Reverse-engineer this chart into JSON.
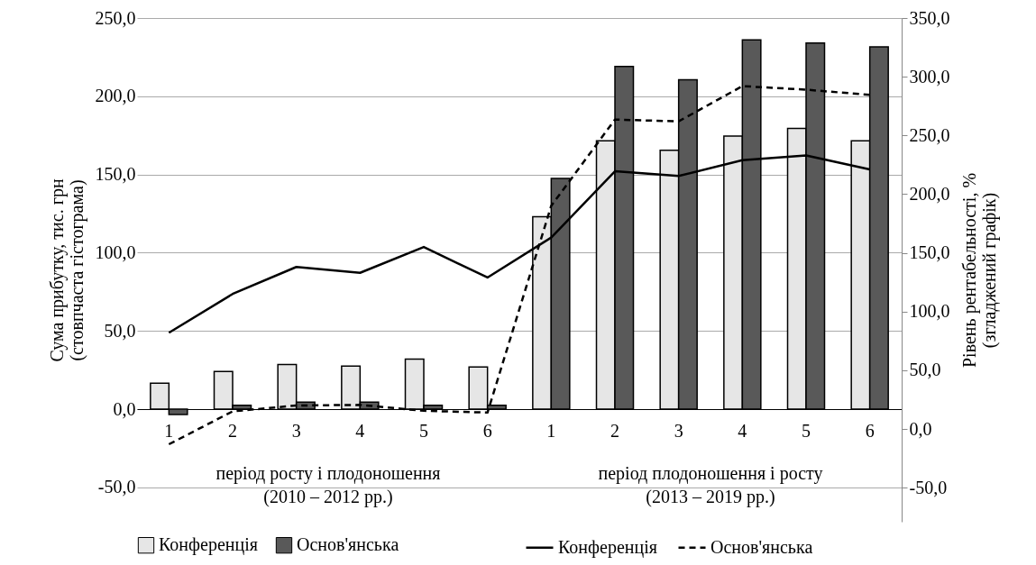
{
  "chart_data": {
    "type": "bar",
    "ylabel": "Сума прибутку, тис. грн\n(стовпчаста гістограма)",
    "y2label": "Рівень рентабельності, %\n(згладжений графік)",
    "categories": [
      "1",
      "2",
      "3",
      "4",
      "5",
      "6",
      "1",
      "2",
      "3",
      "4",
      "5",
      "6"
    ],
    "ylim": [
      -72,
      250
    ],
    "yticks": [
      {
        "value": -50,
        "label": "-50,0"
      },
      {
        "value": 0,
        "label": "0,0"
      },
      {
        "value": 50,
        "label": "50,0"
      },
      {
        "value": 100,
        "label": "100,0"
      },
      {
        "value": 150,
        "label": "150,0"
      },
      {
        "value": 200,
        "label": "200,0"
      },
      {
        "value": 250,
        "label": "250,0"
      }
    ],
    "y2lim": [
      -79,
      350
    ],
    "y2ticks": [
      {
        "value": -50,
        "label": "-50,0"
      },
      {
        "value": 0,
        "label": "0,0"
      },
      {
        "value": 50,
        "label": "50,0"
      },
      {
        "value": 100,
        "label": "100,0"
      },
      {
        "value": 150,
        "label": "150,0"
      },
      {
        "value": 200,
        "label": "200,0"
      },
      {
        "value": 250,
        "label": "250,0"
      },
      {
        "value": 300,
        "label": "300,0"
      },
      {
        "value": 350,
        "label": "350,0"
      }
    ],
    "grid": "y",
    "legend": "bottom",
    "series": [
      {
        "name": "Конференція",
        "color": "#e6e6e6",
        "values": [
          16.5,
          24,
          28.5,
          27.5,
          32,
          27,
          123,
          171.5,
          165.5,
          174.5,
          179.5,
          171.5
        ]
      },
      {
        "name": "Основ'янська",
        "color": "#595959",
        "values": [
          -3.5,
          2.5,
          4.5,
          4.5,
          2.5,
          2.5,
          147.5,
          219,
          210.5,
          236,
          234,
          231.5
        ]
      },
      {
        "name": "Конференція",
        "type": "line",
        "axis": "y2",
        "color": "#000000",
        "line_style": "solid",
        "values": [
          82,
          115,
          138,
          133,
          155,
          129,
          163,
          219.5,
          215.5,
          229,
          233,
          221
        ]
      },
      {
        "name": "Основ'янська",
        "type": "line",
        "axis": "y2",
        "color": "#000000",
        "line_style": "dashed",
        "values": [
          -13,
          15,
          20,
          20.5,
          15.5,
          14,
          190,
          263.5,
          262,
          292,
          289,
          284.5
        ]
      }
    ],
    "annotations": [
      "період росту і плодоношення\n(2010  – 2012 рр.)",
      "період плодоношення і росту\n(2013  – 2019 рр.)"
    ]
  }
}
